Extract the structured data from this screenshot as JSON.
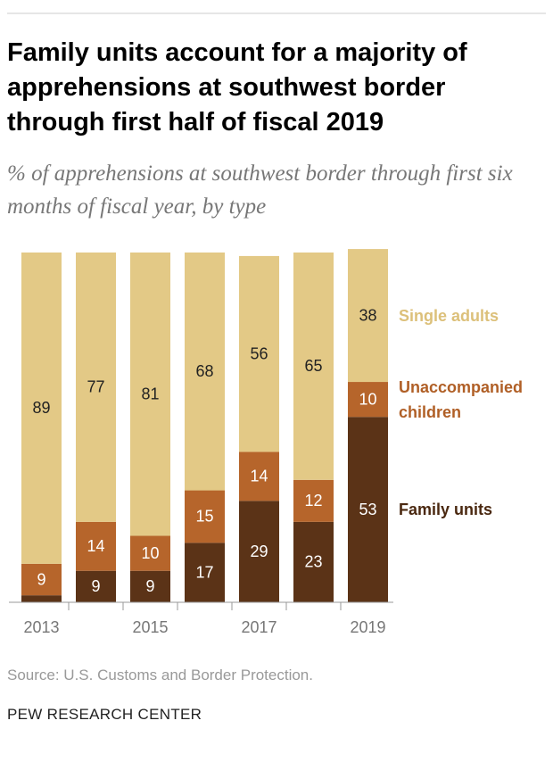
{
  "chart_data": {
    "type": "stacked-bar",
    "title": "Family units account for a majority of apprehensions at southwest border through first half of fiscal 2019",
    "subtitle": "% of apprehensions at southwest border through first six months of fiscal year, by type",
    "source": "Source: U.S. Customs and Border Protection.",
    "credit": "PEW RESEARCH CENTER",
    "categories": [
      "2013",
      null,
      "2015",
      null,
      "2017",
      null,
      "2019"
    ],
    "series": [
      {
        "name": "Family units",
        "color": "#5b3317",
        "label_color": "#4a2810",
        "values": [
          2,
          9,
          9,
          17,
          29,
          23,
          53
        ]
      },
      {
        "name": "Unaccompanied children",
        "color": "#b6652b",
        "label_color": "#b05f26",
        "values": [
          9,
          14,
          10,
          15,
          14,
          12,
          10
        ]
      },
      {
        "name": "Single adults",
        "color": "#e3c986",
        "label_color": "#dcc07a",
        "values": [
          89,
          77,
          81,
          68,
          56,
          65,
          38
        ]
      }
    ],
    "ylim": [
      0,
      100
    ]
  }
}
